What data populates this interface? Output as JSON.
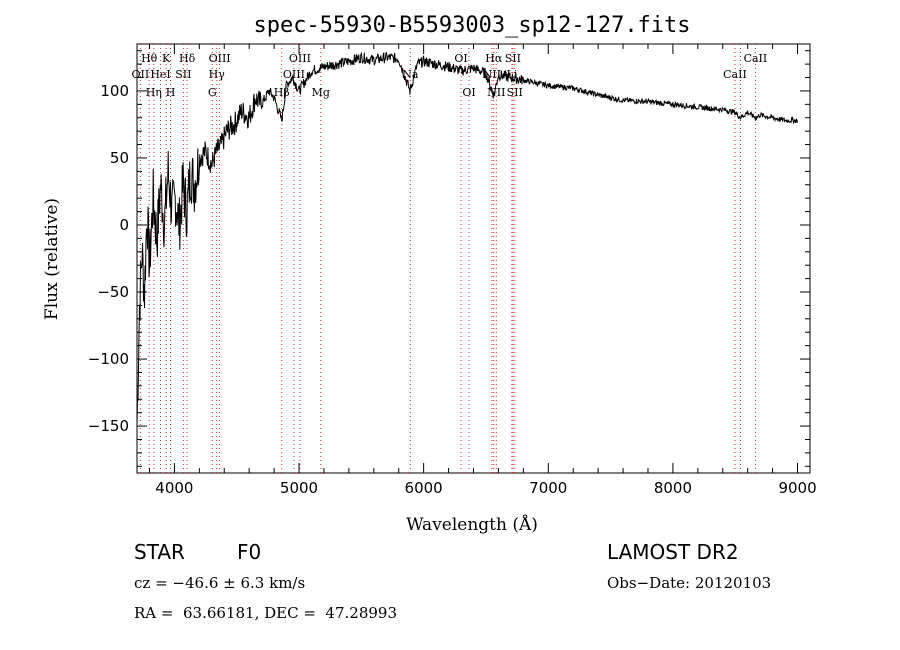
{
  "chart_data": {
    "type": "line",
    "title": "spec-55930-B5593003_sp12-127.fits",
    "xlabel": "Wavelength (Å)",
    "ylabel": "Flux (relative)",
    "xlim": [
      3700,
      9100
    ],
    "ylim": [
      -185,
      135
    ],
    "x_ticks": [
      4000,
      5000,
      6000,
      7000,
      8000,
      9000
    ],
    "x_tick_labels": [
      "4000",
      "5000",
      "6000",
      "7000",
      "8000",
      "9000"
    ],
    "y_ticks": [
      -150,
      -100,
      -50,
      0,
      50,
      100
    ],
    "y_tick_labels": [
      "−150",
      "−100",
      "−50",
      "0",
      "50",
      "100"
    ],
    "series": [
      {
        "x": [
          3700,
          3720,
          3740,
          3760,
          3780,
          3800,
          3830,
          3860,
          3890,
          3920,
          3950,
          3980,
          4010,
          4040,
          4070,
          4100,
          4130,
          4160,
          4200,
          4250,
          4300,
          4340,
          4380,
          4420,
          4480,
          4540,
          4600,
          4650,
          4700,
          4760,
          4800,
          4861,
          4900,
          4950,
          5000,
          5100,
          5200,
          5300,
          5400,
          5500,
          5600,
          5700,
          5800,
          5890,
          5950,
          6000,
          6100,
          6200,
          6300,
          6400,
          6500,
          6563,
          6600,
          6700,
          6800,
          6900,
          7000,
          7200,
          7400,
          7600,
          7800,
          8000,
          8200,
          8400,
          8500,
          8542,
          8600,
          8662,
          8700,
          8800,
          8900,
          9000
        ],
        "y": [
          -150,
          -60,
          -20,
          -50,
          10,
          -30,
          20,
          -10,
          30,
          0,
          40,
          10,
          20,
          0,
          30,
          10,
          40,
          30,
          50,
          55,
          45,
          55,
          60,
          70,
          75,
          85,
          80,
          95,
          90,
          100,
          95,
          78,
          105,
          110,
          100,
          115,
          118,
          120,
          122,
          125,
          123,
          125,
          124,
          100,
          120,
          122,
          120,
          118,
          115,
          117,
          113,
          97,
          112,
          110,
          108,
          106,
          104,
          102,
          97,
          93,
          92,
          90,
          88,
          86,
          84,
          80,
          84,
          80,
          82,
          80,
          78,
          78
        ]
      }
    ],
    "spectral_lines": [
      {
        "name": "Hθ",
        "x": 3798,
        "row": "top"
      },
      {
        "name": "OII",
        "x": 3727,
        "row": "upper"
      },
      {
        "name": "Hη",
        "x": 3835,
        "row": "lower"
      },
      {
        "name": "K",
        "x": 3934,
        "row": "top"
      },
      {
        "name": "HeI",
        "x": 3889,
        "row": "upper"
      },
      {
        "name": "SII",
        "x": 4072,
        "row": "upper"
      },
      {
        "name": "H",
        "x": 3969,
        "row": "lower"
      },
      {
        "name": "Hδ",
        "x": 4102,
        "row": "top"
      },
      {
        "name": "OIII",
        "x": 4363,
        "row": "top"
      },
      {
        "name": "Hγ",
        "x": 4340,
        "row": "upper"
      },
      {
        "name": "G",
        "x": 4304,
        "row": "lower"
      },
      {
        "name": "OIII",
        "x": 5007,
        "row": "top"
      },
      {
        "name": "OIII",
        "x": 4959,
        "row": "upper"
      },
      {
        "name": "Hβ",
        "x": 4861,
        "row": "lower"
      },
      {
        "name": "Mg",
        "x": 5175,
        "row": "lower"
      },
      {
        "name": "Na",
        "x": 5893,
        "row": "upper"
      },
      {
        "name": "OI",
        "x": 6300,
        "row": "top"
      },
      {
        "name": "OI",
        "x": 6364,
        "row": "lower"
      },
      {
        "name": "Hα",
        "x": 6563,
        "row": "top"
      },
      {
        "name": "SII",
        "x": 6716,
        "row": "top"
      },
      {
        "name": "NII",
        "x": 6548,
        "row": "upper"
      },
      {
        "name": "NII",
        "x": 6583,
        "row": "lower"
      },
      {
        "name": "Li",
        "x": 6708,
        "row": "upper"
      },
      {
        "name": "SII",
        "x": 6731,
        "row": "lower"
      },
      {
        "name": "CaII",
        "x": 8662,
        "row": "top"
      },
      {
        "name": "CaII",
        "x": 8498,
        "row": "upper"
      },
      {
        "name": "CaII",
        "x": 8542,
        "row": "hidden"
      }
    ],
    "line_color": "#000000",
    "marker_color": "#d62828"
  },
  "info": {
    "class_label": "STAR",
    "subclass": "F0",
    "survey": "LAMOST DR2",
    "cz": "cz = −46.6 ± 6.3 km/s",
    "obs_date": "Obs−Date: 20120103",
    "coords": "RA =  63.66181, DEC =  47.28993"
  }
}
